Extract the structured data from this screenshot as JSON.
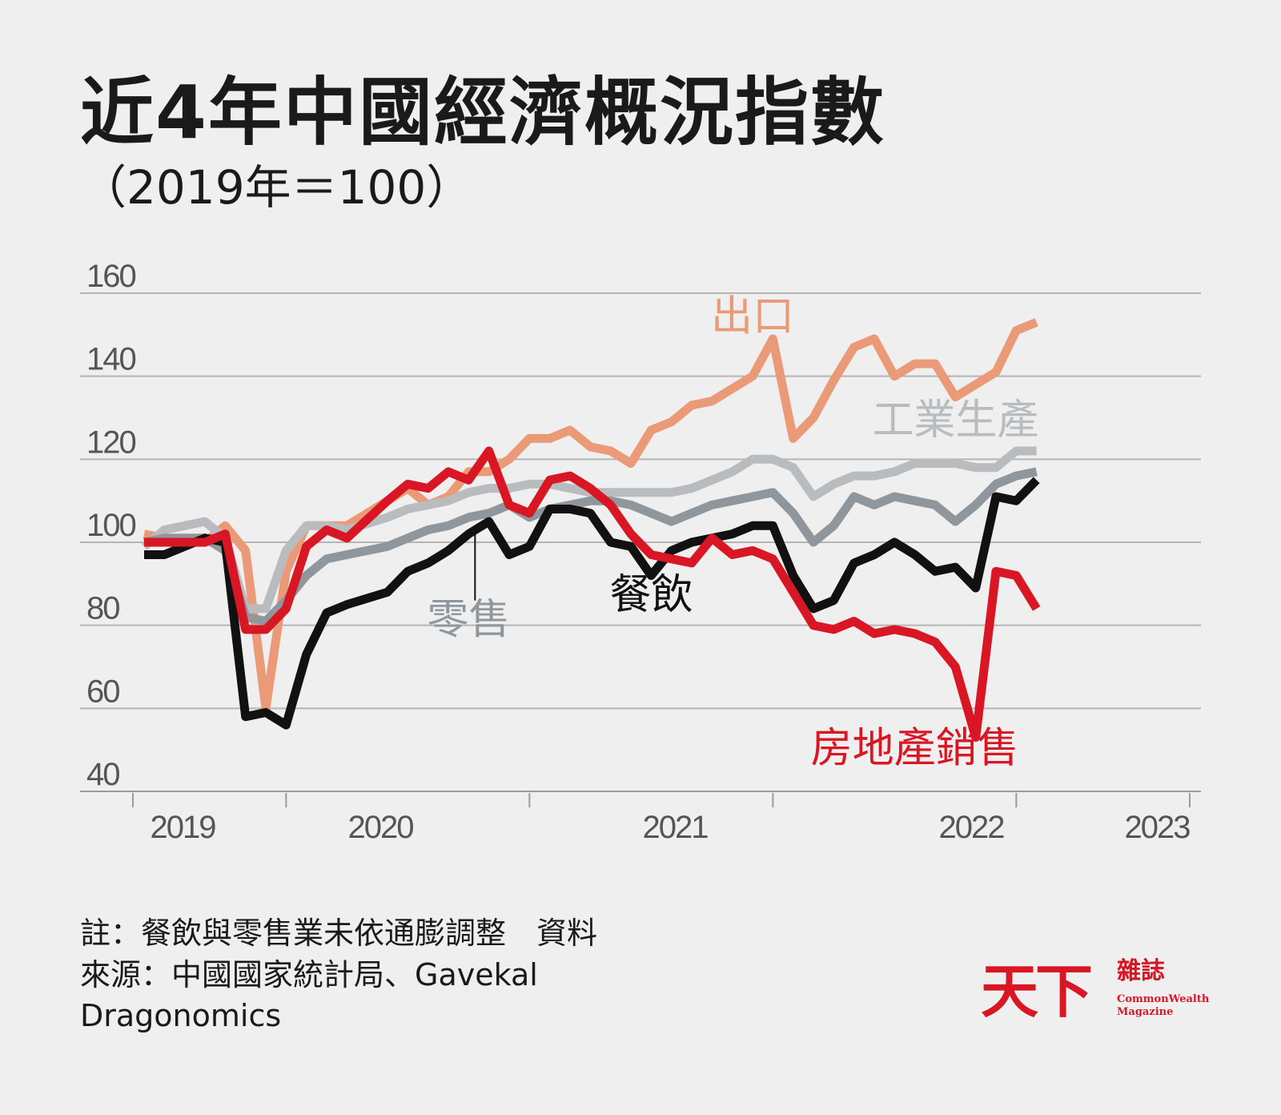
{
  "chart_data": {
    "type": "line",
    "title": "近4年中國經濟概況指數",
    "subtitle": "（2019年＝100）",
    "x_labels": [
      "2019",
      "2020",
      "2021",
      "2022",
      "2023"
    ],
    "x_range": [
      "2019-02",
      "2023-05"
    ],
    "y_ticks": [
      "160",
      "140",
      "120",
      "100",
      "80",
      "60",
      "40"
    ],
    "ylim": [
      40,
      160
    ],
    "grid": true,
    "series": [
      {
        "name": "出口",
        "color": "#eb9a78",
        "label_point": [
          "2021-08",
          151
        ],
        "points": [
          [
            "2019-02",
            102
          ],
          [
            "2019-03",
            101
          ],
          [
            "2019-05",
            100
          ],
          [
            "2019-06",
            104
          ],
          [
            "2019-07",
            98
          ],
          [
            "2019-08",
            60
          ],
          [
            "2019-09",
            93
          ],
          [
            "2019-10",
            104
          ],
          [
            "2019-11",
            104
          ],
          [
            "2019-12",
            104
          ],
          [
            "2020-02",
            110
          ],
          [
            "2020-03",
            113
          ],
          [
            "2020-04",
            109
          ],
          [
            "2020-05",
            111
          ],
          [
            "2020-06",
            117
          ],
          [
            "2020-07",
            117
          ],
          [
            "2020-08",
            120
          ],
          [
            "2020-09",
            125
          ],
          [
            "2020-10",
            125
          ],
          [
            "2020-11",
            127
          ],
          [
            "2020-12",
            123
          ],
          [
            "2021-01",
            122
          ],
          [
            "2021-02",
            119
          ],
          [
            "2021-03",
            127
          ],
          [
            "2021-04",
            129
          ],
          [
            "2021-05",
            133
          ],
          [
            "2021-06",
            134
          ],
          [
            "2021-07",
            137
          ],
          [
            "2021-08",
            140
          ],
          [
            "2021-09",
            149
          ],
          [
            "2021-10",
            125
          ],
          [
            "2021-11",
            130
          ],
          [
            "2021-12",
            139
          ],
          [
            "2022-01",
            147
          ],
          [
            "2022-02",
            149
          ],
          [
            "2022-03",
            140
          ],
          [
            "2022-04",
            143
          ],
          [
            "2022-05",
            143
          ],
          [
            "2022-06",
            135
          ],
          [
            "2022-07",
            138
          ],
          [
            "2022-08",
            141
          ],
          [
            "2022-09",
            151
          ],
          [
            "2022-10",
            153
          ]
        ]
      },
      {
        "name": "工業生產",
        "color": "#b9bcbf",
        "label_point": [
          "2022-06",
          126
        ],
        "points": [
          [
            "2019-02",
            99
          ],
          [
            "2019-03",
            103
          ],
          [
            "2019-04",
            104
          ],
          [
            "2019-05",
            105
          ],
          [
            "2019-06",
            101
          ],
          [
            "2019-07",
            84
          ],
          [
            "2019-08",
            84
          ],
          [
            "2019-09",
            98
          ],
          [
            "2019-10",
            104
          ],
          [
            "2019-11",
            104
          ],
          [
            "2019-12",
            103
          ],
          [
            "2020-02",
            106
          ],
          [
            "2020-03",
            108
          ],
          [
            "2020-04",
            109
          ],
          [
            "2020-05",
            110
          ],
          [
            "2020-06",
            112
          ],
          [
            "2020-07",
            113
          ],
          [
            "2020-08",
            113
          ],
          [
            "2020-09",
            114
          ],
          [
            "2020-10",
            114
          ],
          [
            "2020-11",
            113
          ],
          [
            "2020-12",
            112
          ],
          [
            "2021-01",
            112
          ],
          [
            "2021-02",
            112
          ],
          [
            "2021-03",
            112
          ],
          [
            "2021-04",
            112
          ],
          [
            "2021-05",
            113
          ],
          [
            "2021-06",
            115
          ],
          [
            "2021-07",
            117
          ],
          [
            "2021-08",
            120
          ],
          [
            "2021-09",
            120
          ],
          [
            "2021-10",
            118
          ],
          [
            "2021-11",
            111
          ],
          [
            "2021-12",
            114
          ],
          [
            "2022-01",
            116
          ],
          [
            "2022-02",
            116
          ],
          [
            "2022-03",
            117
          ],
          [
            "2022-04",
            119
          ],
          [
            "2022-05",
            119
          ],
          [
            "2022-06",
            119
          ],
          [
            "2022-07",
            118
          ],
          [
            "2022-08",
            118
          ],
          [
            "2022-09",
            122
          ],
          [
            "2022-10",
            122
          ]
        ]
      },
      {
        "name": "零售",
        "color": "#8f979c",
        "label_point": [
          "2020-06",
          78
        ],
        "points": [
          [
            "2019-02",
            100
          ],
          [
            "2019-03",
            101
          ],
          [
            "2019-04",
            101
          ],
          [
            "2019-05",
            101
          ],
          [
            "2019-06",
            98
          ],
          [
            "2019-07",
            82
          ],
          [
            "2019-08",
            81
          ],
          [
            "2019-09",
            86
          ],
          [
            "2019-10",
            92
          ],
          [
            "2019-11",
            96
          ],
          [
            "2019-12",
            97
          ],
          [
            "2020-02",
            99
          ],
          [
            "2020-03",
            101
          ],
          [
            "2020-04",
            103
          ],
          [
            "2020-05",
            104
          ],
          [
            "2020-06",
            106
          ],
          [
            "2020-07",
            107
          ],
          [
            "2020-08",
            109
          ],
          [
            "2020-09",
            106
          ],
          [
            "2020-10",
            108
          ],
          [
            "2020-11",
            109
          ],
          [
            "2020-12",
            110
          ],
          [
            "2021-01",
            110
          ],
          [
            "2021-02",
            109
          ],
          [
            "2021-03",
            107
          ],
          [
            "2021-04",
            105
          ],
          [
            "2021-05",
            107
          ],
          [
            "2021-06",
            109
          ],
          [
            "2021-07",
            110
          ],
          [
            "2021-08",
            111
          ],
          [
            "2021-09",
            112
          ],
          [
            "2021-10",
            107
          ],
          [
            "2021-11",
            100
          ],
          [
            "2021-12",
            104
          ],
          [
            "2022-01",
            111
          ],
          [
            "2022-02",
            109
          ],
          [
            "2022-03",
            111
          ],
          [
            "2022-04",
            110
          ],
          [
            "2022-05",
            109
          ],
          [
            "2022-06",
            105
          ],
          [
            "2022-07",
            109
          ],
          [
            "2022-08",
            114
          ],
          [
            "2022-09",
            116
          ],
          [
            "2022-10",
            117
          ]
        ]
      },
      {
        "name": "餐飲",
        "color": "#111111",
        "label_point": [
          "2021-03",
          84
        ],
        "points": [
          [
            "2019-02",
            97
          ],
          [
            "2019-03",
            97
          ],
          [
            "2019-05",
            101
          ],
          [
            "2019-06",
            100
          ],
          [
            "2019-07",
            58
          ],
          [
            "2019-08",
            59
          ],
          [
            "2019-09",
            56
          ],
          [
            "2019-10",
            73
          ],
          [
            "2019-11",
            83
          ],
          [
            "2019-12",
            85
          ],
          [
            "2020-02",
            88
          ],
          [
            "2020-03",
            93
          ],
          [
            "2020-04",
            95
          ],
          [
            "2020-05",
            98
          ],
          [
            "2020-06",
            102
          ],
          [
            "2020-07",
            105
          ],
          [
            "2020-08",
            97
          ],
          [
            "2020-09",
            99
          ],
          [
            "2020-10",
            108
          ],
          [
            "2020-11",
            108
          ],
          [
            "2020-12",
            107
          ],
          [
            "2021-01",
            100
          ],
          [
            "2021-02",
            99
          ],
          [
            "2021-03",
            92
          ],
          [
            "2021-04",
            98
          ],
          [
            "2021-05",
            100
          ],
          [
            "2021-06",
            101
          ],
          [
            "2021-07",
            102
          ],
          [
            "2021-08",
            104
          ],
          [
            "2021-09",
            104
          ],
          [
            "2021-10",
            92
          ],
          [
            "2021-11",
            84
          ],
          [
            "2021-12",
            86
          ],
          [
            "2022-01",
            95
          ],
          [
            "2022-02",
            97
          ],
          [
            "2022-03",
            100
          ],
          [
            "2022-04",
            97
          ],
          [
            "2022-05",
            93
          ],
          [
            "2022-06",
            94
          ],
          [
            "2022-07",
            89
          ],
          [
            "2022-08",
            111
          ],
          [
            "2022-09",
            110
          ],
          [
            "2022-10",
            115
          ]
        ]
      },
      {
        "name": "房地產銷售",
        "color": "#d91623",
        "label_point": [
          "2022-04",
          47
        ],
        "points": [
          [
            "2019-02",
            100
          ],
          [
            "2019-03",
            100
          ],
          [
            "2019-05",
            100
          ],
          [
            "2019-06",
            102
          ],
          [
            "2019-07",
            79
          ],
          [
            "2019-08",
            79
          ],
          [
            "2019-09",
            84
          ],
          [
            "2019-10",
            99
          ],
          [
            "2019-11",
            103
          ],
          [
            "2019-12",
            101
          ],
          [
            "2020-02",
            110
          ],
          [
            "2020-03",
            114
          ],
          [
            "2020-04",
            113
          ],
          [
            "2020-05",
            117
          ],
          [
            "2020-06",
            115
          ],
          [
            "2020-07",
            122
          ],
          [
            "2020-08",
            109
          ],
          [
            "2020-09",
            107
          ],
          [
            "2020-10",
            115
          ],
          [
            "2020-11",
            116
          ],
          [
            "2020-12",
            113
          ],
          [
            "2021-01",
            109
          ],
          [
            "2021-02",
            102
          ],
          [
            "2021-03",
            97
          ],
          [
            "2021-04",
            96
          ],
          [
            "2021-05",
            95
          ],
          [
            "2021-06",
            101
          ],
          [
            "2021-07",
            97
          ],
          [
            "2021-08",
            98
          ],
          [
            "2021-09",
            96
          ],
          [
            "2021-10",
            88
          ],
          [
            "2021-11",
            80
          ],
          [
            "2021-12",
            79
          ],
          [
            "2022-01",
            81
          ],
          [
            "2022-02",
            78
          ],
          [
            "2022-03",
            79
          ],
          [
            "2022-04",
            78
          ],
          [
            "2022-05",
            76
          ],
          [
            "2022-06",
            70
          ],
          [
            "2022-07",
            53
          ],
          [
            "2022-08",
            93
          ],
          [
            "2022-09",
            92
          ],
          [
            "2022-10",
            84
          ]
        ]
      }
    ]
  },
  "footnote": "註：餐飲與零售業未依通膨調整　資料來源：中國國家統計局、Gavekal Dragonomics",
  "logo": {
    "main": "天下",
    "sub": "雜誌",
    "en_line1": "CommonWealth",
    "en_line2": "Magazine"
  }
}
